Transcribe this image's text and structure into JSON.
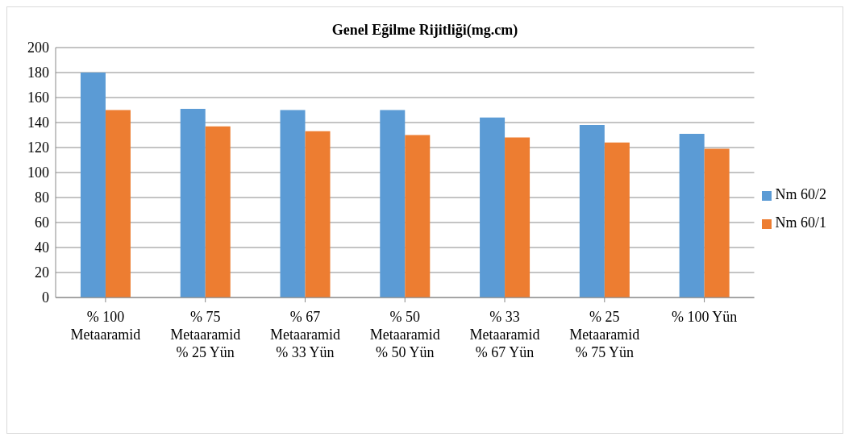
{
  "chart_data": {
    "type": "bar",
    "title": "Genel Eğilme Rijitliği(mg.cm)",
    "categories": [
      "% 100 Metaaramid",
      "% 75 Metaaramid % 25 Yün",
      "% 67 Metaaramid % 33 Yün",
      "% 50 Metaaramid % 50 Yün",
      "% 33 Metaaramid % 67 Yün",
      "% 25 Metaaramid % 75 Yün",
      "% 100 Yün"
    ],
    "series": [
      {
        "name": "Nm 60/2",
        "color": "#5b9bd5",
        "values": [
          180,
          151,
          150,
          150,
          144,
          138,
          131
        ]
      },
      {
        "name": "Nm 60/1",
        "color": "#ed7d31",
        "values": [
          150,
          137,
          133,
          130,
          128,
          124,
          119
        ]
      }
    ],
    "ylim": [
      0,
      200
    ],
    "yticks": [
      0,
      20,
      40,
      60,
      80,
      100,
      120,
      140,
      160,
      180,
      200
    ],
    "grid": "y",
    "legend": "right"
  }
}
